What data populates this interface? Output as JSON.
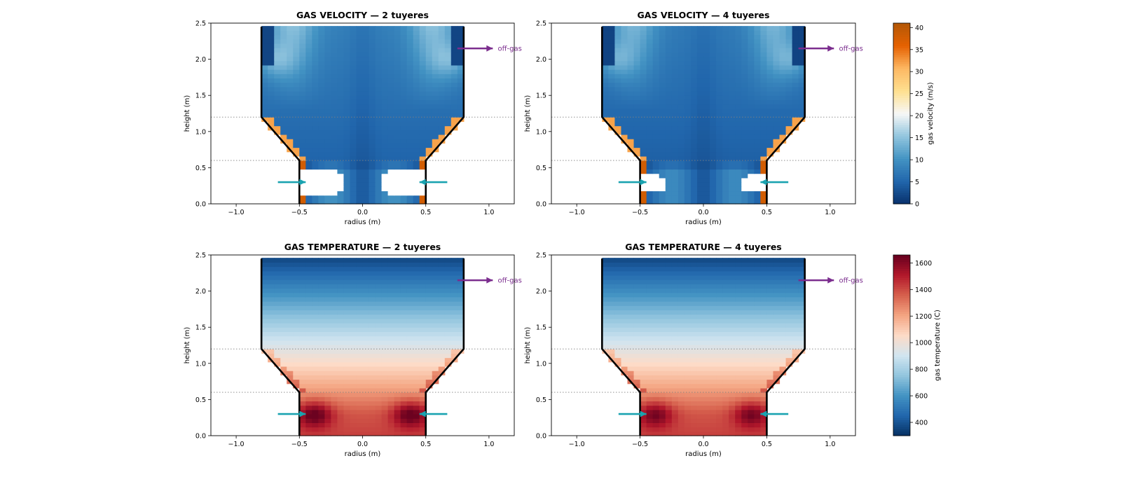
{
  "colors": {
    "velocity_cmap": [
      "#08306b",
      "#2166ac",
      "#4393c3",
      "#92c5de",
      "#f7f7f7",
      "#fee090",
      "#fdb863",
      "#e66101",
      "#b35806"
    ],
    "temperature_cmap": [
      "#053061",
      "#2166ac",
      "#4393c3",
      "#92c5de",
      "#d1e5f0",
      "#fddbc7",
      "#f4a582",
      "#d6604d",
      "#b2182b",
      "#67001f"
    ],
    "tuyere_arrow": "#1aa3b0",
    "offgas_arrow": "#7b2d8e",
    "wall": "#000000",
    "guide_line": "#808080"
  },
  "chart_data": [
    {
      "type": "heatmap",
      "title": "GAS VELOCITY — 2 tuyeres",
      "xlabel": "radius (m)",
      "ylabel": "height (m)",
      "xlim": [
        -1.2,
        1.2
      ],
      "ylim": [
        0,
        2.5
      ],
      "xticks": [
        "−1.0",
        "−0.5",
        "0.0",
        "0.5",
        "1.0"
      ],
      "yticks": [
        "0.0",
        "0.5",
        "1.0",
        "1.5",
        "2.0",
        "2.5"
      ],
      "field": "velocity",
      "tuyeres": 2,
      "offgas_label": "off-gas",
      "furnace_outline_r": [
        [
          -0.8,
          2.45
        ],
        [
          -0.8,
          1.2
        ],
        [
          -0.5,
          0.6
        ],
        [
          -0.5,
          0.0
        ]
      ],
      "guide_heights": [
        1.2,
        0.6
      ],
      "tuyere_height": 0.3,
      "offgas_height": 2.15
    },
    {
      "type": "heatmap",
      "title": "GAS VELOCITY — 4 tuyeres",
      "xlabel": "radius (m)",
      "ylabel": "height (m)",
      "xlim": [
        -1.2,
        1.2
      ],
      "ylim": [
        0,
        2.5
      ],
      "xticks": [
        "−1.0",
        "−0.5",
        "0.0",
        "0.5",
        "1.0"
      ],
      "yticks": [
        "0.0",
        "0.5",
        "1.0",
        "1.5",
        "2.0",
        "2.5"
      ],
      "field": "velocity",
      "tuyeres": 4,
      "offgas_label": "off-gas",
      "furnace_outline_r": [
        [
          -0.8,
          2.45
        ],
        [
          -0.8,
          1.2
        ],
        [
          -0.5,
          0.6
        ],
        [
          -0.5,
          0.0
        ]
      ],
      "guide_heights": [
        1.2,
        0.6
      ],
      "tuyere_height": 0.3,
      "offgas_height": 2.15
    },
    {
      "type": "heatmap",
      "title": "GAS TEMPERATURE — 2 tuyeres",
      "xlabel": "radius (m)",
      "ylabel": "height (m)",
      "xlim": [
        -1.2,
        1.2
      ],
      "ylim": [
        0,
        2.5
      ],
      "xticks": [
        "−1.0",
        "−0.5",
        "0.0",
        "0.5",
        "1.0"
      ],
      "yticks": [
        "0.0",
        "0.5",
        "1.0",
        "1.5",
        "2.0",
        "2.5"
      ],
      "field": "temperature",
      "tuyeres": 2,
      "offgas_label": "off-gas",
      "furnace_outline_r": [
        [
          -0.8,
          2.45
        ],
        [
          -0.8,
          1.2
        ],
        [
          -0.5,
          0.6
        ],
        [
          -0.5,
          0.0
        ]
      ],
      "guide_heights": [
        1.2,
        0.6
      ],
      "tuyere_height": 0.3,
      "offgas_height": 2.15
    },
    {
      "type": "heatmap",
      "title": "GAS TEMPERATURE — 4 tuyeres",
      "xlabel": "radius (m)",
      "ylabel": "height (m)",
      "xlim": [
        -1.2,
        1.2
      ],
      "ylim": [
        0,
        2.5
      ],
      "xticks": [
        "−1.0",
        "−0.5",
        "0.0",
        "0.5",
        "1.0"
      ],
      "yticks": [
        "0.0",
        "0.5",
        "1.0",
        "1.5",
        "2.0",
        "2.5"
      ],
      "field": "temperature",
      "tuyeres": 4,
      "offgas_label": "off-gas",
      "furnace_outline_r": [
        [
          -0.8,
          2.45
        ],
        [
          -0.8,
          1.2
        ],
        [
          -0.5,
          0.6
        ],
        [
          -0.5,
          0.0
        ]
      ],
      "guide_heights": [
        1.2,
        0.6
      ],
      "tuyere_height": 0.3,
      "offgas_height": 2.15
    }
  ],
  "colorbars": [
    {
      "label": "gas velocity (m/s)",
      "range": [
        0,
        41
      ],
      "ticks": [
        "0",
        "5",
        "10",
        "15",
        "20",
        "25",
        "30",
        "35",
        "40"
      ],
      "tick_values": [
        0,
        5,
        10,
        15,
        20,
        25,
        30,
        35,
        40
      ]
    },
    {
      "label": "gas temperature (C)",
      "range": [
        300,
        1660
      ],
      "ticks": [
        "400",
        "600",
        "800",
        "1000",
        "1200",
        "1400",
        "1600"
      ],
      "tick_values": [
        400,
        600,
        800,
        1000,
        1200,
        1400,
        1600
      ]
    }
  ]
}
